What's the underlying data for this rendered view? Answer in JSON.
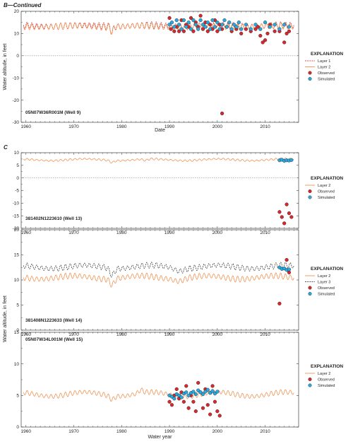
{
  "figure": {
    "top_label": "B—Continued"
  },
  "chart_data": [
    {
      "type": "line",
      "section": "",
      "well_label": "05N07W36R001M (Well 9)",
      "xlabel": "Date",
      "ylabel": "Water altitude, in feet",
      "xlim": [
        1959,
        2017
      ],
      "ylim": [
        -30,
        20
      ],
      "yticks": [
        -30,
        -20,
        -10,
        0,
        10,
        20
      ],
      "xticks": [
        1960,
        1970,
        1980,
        1990,
        2000,
        2010
      ],
      "zero_line": true,
      "legend": {
        "title": "EXPLANATION",
        "items": [
          {
            "label": "Layer 1",
            "kind": "dash",
            "color": "#c8102e"
          },
          {
            "label": "Layer 2",
            "kind": "line",
            "color": "#f0833a"
          },
          {
            "label": "Observed",
            "kind": "dot",
            "color": "#d9272e"
          },
          {
            "label": "Simulated",
            "kind": "dot",
            "color": "#27a9e1"
          }
        ]
      },
      "series": [
        {
          "name": "Layer 1",
          "style": "dash",
          "color": "#c8102e",
          "base": 13.5,
          "amp": 1.5,
          "from": 1959.5,
          "to": 2016,
          "dips": [
            [
              1977.5,
              1978.5,
              -3
            ]
          ]
        },
        {
          "name": "Layer 2",
          "style": "line",
          "color": "#f0833a",
          "base": 13.2,
          "amp": 1.5,
          "from": 1959.5,
          "to": 2016,
          "dips": [
            [
              1977.5,
              1978.5,
              -3
            ]
          ]
        }
      ],
      "observed": [
        [
          1990.0,
          17
        ],
        [
          1990.3,
          12
        ],
        [
          1991.0,
          11
        ],
        [
          1991.5,
          13
        ],
        [
          1992.0,
          11
        ],
        [
          1992.5,
          16
        ],
        [
          1993.0,
          11
        ],
        [
          1993.5,
          14
        ],
        [
          1994.0,
          13
        ],
        [
          1994.5,
          17
        ],
        [
          1995.0,
          11
        ],
        [
          1995.5,
          15
        ],
        [
          1996.0,
          13
        ],
        [
          1996.5,
          18
        ],
        [
          1997.0,
          12
        ],
        [
          1997.5,
          15
        ],
        [
          1998.0,
          11
        ],
        [
          1998.5,
          14
        ],
        [
          1999.0,
          12
        ],
        [
          1999.5,
          16
        ],
        [
          2000.0,
          11
        ],
        [
          2000.5,
          14
        ],
        [
          2001.0,
          12
        ],
        [
          2001.0,
          -26
        ],
        [
          2002.0,
          13
        ],
        [
          2003.0,
          11
        ],
        [
          2004.0,
          12
        ],
        [
          2005.0,
          10
        ],
        [
          2006.0,
          12
        ],
        [
          2007.0,
          11
        ],
        [
          2008.0,
          12
        ],
        [
          2008.5,
          13
        ],
        [
          2009.0,
          9
        ],
        [
          2009.5,
          6
        ],
        [
          2010.0,
          7
        ],
        [
          2010.5,
          10
        ],
        [
          2011.0,
          14
        ],
        [
          2012.0,
          11
        ],
        [
          2013.0,
          11
        ],
        [
          2014.0,
          6
        ],
        [
          2014.5,
          10
        ],
        [
          2015.0,
          11
        ]
      ],
      "simulated": [
        [
          1990.0,
          14
        ],
        [
          1990.5,
          15
        ],
        [
          1991.0,
          13
        ],
        [
          1991.5,
          16
        ],
        [
          1992.0,
          14
        ],
        [
          1992.5,
          12
        ],
        [
          1993.0,
          16
        ],
        [
          1993.5,
          13
        ],
        [
          1994.0,
          15
        ],
        [
          1994.5,
          12
        ],
        [
          1995.0,
          16
        ],
        [
          1995.5,
          14
        ],
        [
          1996.0,
          12
        ],
        [
          1996.5,
          16
        ],
        [
          1997.0,
          14
        ],
        [
          1997.5,
          13
        ],
        [
          1998.0,
          15
        ],
        [
          1998.5,
          12
        ],
        [
          1999.0,
          16
        ],
        [
          1999.5,
          13
        ],
        [
          2000.0,
          15
        ],
        [
          2000.5,
          12
        ],
        [
          2001.0,
          14
        ],
        [
          2001.5,
          16
        ],
        [
          2002.0,
          13
        ],
        [
          2002.5,
          15
        ],
        [
          2003.0,
          12
        ],
        [
          2003.5,
          14
        ],
        [
          2004.0,
          13
        ],
        [
          2004.5,
          15
        ],
        [
          2005.0,
          12
        ],
        [
          2006.0,
          14
        ],
        [
          2007.0,
          12
        ],
        [
          2008.0,
          14
        ],
        [
          2009.0,
          12
        ],
        [
          2010.0,
          15
        ],
        [
          2011.0,
          13
        ],
        [
          2012.0,
          14
        ],
        [
          2013.0,
          12
        ],
        [
          2014.0,
          14
        ],
        [
          2015.0,
          13
        ]
      ]
    },
    {
      "type": "line",
      "section": "C",
      "well_label": "381402N1223610 (Well 13)",
      "xlabel": "",
      "ylabel": "",
      "xlim": [
        1959,
        2017
      ],
      "ylim": [
        -20,
        10
      ],
      "yticks": [
        -20,
        -15,
        -10,
        -5,
        0,
        5,
        10
      ],
      "xticks": [
        1960,
        1970,
        1980,
        1990,
        2000,
        2010
      ],
      "zero_line": true,
      "legend": {
        "title": "EXPLANATION",
        "items": [
          {
            "label": "Layer 2",
            "kind": "line",
            "color": "#f0833a"
          },
          {
            "label": "Observed",
            "kind": "dot",
            "color": "#d9272e"
          },
          {
            "label": "Simulated",
            "kind": "dot",
            "color": "#27a9e1"
          }
        ]
      },
      "series": [
        {
          "name": "Layer 2",
          "style": "line",
          "color": "#f0833a",
          "base": 7.2,
          "amp": 0.4,
          "from": 1959.5,
          "to": 2016,
          "dips": [
            [
              1977,
              1979,
              -0.8
            ],
            [
              1984,
              1986,
              -0.6
            ]
          ]
        }
      ],
      "observed": [
        [
          2013.0,
          -13.5
        ],
        [
          2013.5,
          -15.5
        ],
        [
          2014.0,
          -18
        ],
        [
          2014.5,
          -10.5
        ],
        [
          2015.0,
          -14
        ],
        [
          2015.5,
          -15.5
        ]
      ],
      "simulated": [
        [
          2013.0,
          7
        ],
        [
          2013.5,
          7.2
        ],
        [
          2014.0,
          6.8
        ],
        [
          2014.5,
          7
        ],
        [
          2015.0,
          6.9
        ],
        [
          2015.5,
          7.1
        ]
      ]
    },
    {
      "type": "line",
      "section": "",
      "well_label": "381408N1223633 (Well 14)",
      "xlabel": "",
      "ylabel": "Water altitude, in feet",
      "xlim": [
        1959,
        2017
      ],
      "ylim": [
        0,
        20
      ],
      "yticks": [
        0,
        5,
        10,
        15,
        20
      ],
      "xticks": [
        1960,
        1970,
        1980,
        1990,
        2000,
        2010
      ],
      "zero_line": false,
      "legend": {
        "title": "EXPLANATION",
        "items": [
          {
            "label": "Layer 2",
            "kind": "line",
            "color": "#f0833a"
          },
          {
            "label": "Layer 3",
            "kind": "dash",
            "color": "#231f20"
          },
          {
            "label": "Observed",
            "kind": "dot",
            "color": "#d9272e"
          },
          {
            "label": "Simulated",
            "kind": "dot",
            "color": "#27a9e1"
          }
        ]
      },
      "series": [
        {
          "name": "Layer 3",
          "style": "dash",
          "color": "#231f20",
          "base": 12.6,
          "amp": 0.6,
          "from": 1959.5,
          "to": 2016,
          "dips": [
            [
              1977,
              1979,
              -1.5
            ],
            [
              1990,
              1994,
              -0.6
            ]
          ]
        },
        {
          "name": "Layer 2",
          "style": "line",
          "color": "#f0833a",
          "base": 10.5,
          "amp": 0.6,
          "from": 1959.5,
          "to": 2016,
          "dips": [
            [
              1977,
              1979,
              -1.3
            ],
            [
              1990,
              1994,
              -0.5
            ]
          ]
        }
      ],
      "observed": [
        [
          2013.0,
          5.3
        ],
        [
          2014.5,
          14
        ],
        [
          2015.0,
          11.5
        ]
      ],
      "simulated": [
        [
          2013.0,
          12.5
        ],
        [
          2013.5,
          12.2
        ],
        [
          2014.0,
          12.3
        ],
        [
          2014.5,
          12
        ],
        [
          2015.0,
          12.1
        ]
      ]
    },
    {
      "type": "line",
      "section": "",
      "well_label": "05N07W34L001M (Well 15)",
      "xlabel": "Water year",
      "ylabel": "",
      "xlim": [
        1959,
        2017
      ],
      "ylim": [
        0,
        15
      ],
      "yticks": [
        0,
        5,
        10,
        15
      ],
      "xticks": [
        1960,
        1970,
        1980,
        1990,
        2000,
        2010
      ],
      "zero_line": false,
      "legend": {
        "title": "EXPLANATION",
        "items": [
          {
            "label": "Layer 2",
            "kind": "line",
            "color": "#f0833a"
          },
          {
            "label": "Observed",
            "kind": "dot",
            "color": "#d9272e"
          },
          {
            "label": "Simulated",
            "kind": "dot",
            "color": "#27a9e1"
          }
        ]
      },
      "series": [
        {
          "name": "Layer 2",
          "style": "line",
          "color": "#f0833a",
          "base": 5.2,
          "amp": 0.4,
          "from": 1959.5,
          "to": 2016,
          "dips": [
            [
              1977,
              1979,
              -0.6
            ],
            [
              1983,
              1985,
              0.5
            ]
          ]
        }
      ],
      "observed": [
        [
          1990.0,
          4
        ],
        [
          1990.5,
          3.5
        ],
        [
          1991.0,
          5
        ],
        [
          1991.5,
          6
        ],
        [
          1992.0,
          4.5
        ],
        [
          1992.5,
          5.5
        ],
        [
          1993.0,
          4
        ],
        [
          1993.5,
          6.5
        ],
        [
          1994.0,
          3
        ],
        [
          1994.5,
          5
        ],
        [
          1995.0,
          4
        ],
        [
          1995.5,
          2.5
        ],
        [
          1996.0,
          7
        ],
        [
          1996.5,
          5.5
        ],
        [
          1997.0,
          3
        ],
        [
          1997.5,
          6
        ],
        [
          1998.0,
          3.5
        ],
        [
          1998.5,
          2
        ],
        [
          1999.0,
          6.5
        ],
        [
          1999.5,
          4
        ],
        [
          2000.0,
          2.5
        ],
        [
          2000.5,
          1.8
        ]
      ],
      "simulated": [
        [
          1990.0,
          5
        ],
        [
          1990.5,
          4.8
        ],
        [
          1991.0,
          4.5
        ],
        [
          1991.5,
          5.2
        ],
        [
          1992.0,
          5
        ],
        [
          1992.5,
          4.7
        ],
        [
          1993.0,
          5.3
        ],
        [
          1993.5,
          5.5
        ],
        [
          1994.0,
          5
        ],
        [
          1994.5,
          5.4
        ],
        [
          1995.0,
          5.6
        ],
        [
          1995.5,
          5.2
        ],
        [
          1996.0,
          5.8
        ],
        [
          1996.5,
          5.5
        ],
        [
          1997.0,
          5.2
        ],
        [
          1997.5,
          5.6
        ],
        [
          1998.0,
          5.9
        ],
        [
          1998.5,
          5.4
        ],
        [
          1999.0,
          5.7
        ],
        [
          1999.5,
          5.3
        ],
        [
          2000.0,
          5.6
        ]
      ]
    }
  ]
}
